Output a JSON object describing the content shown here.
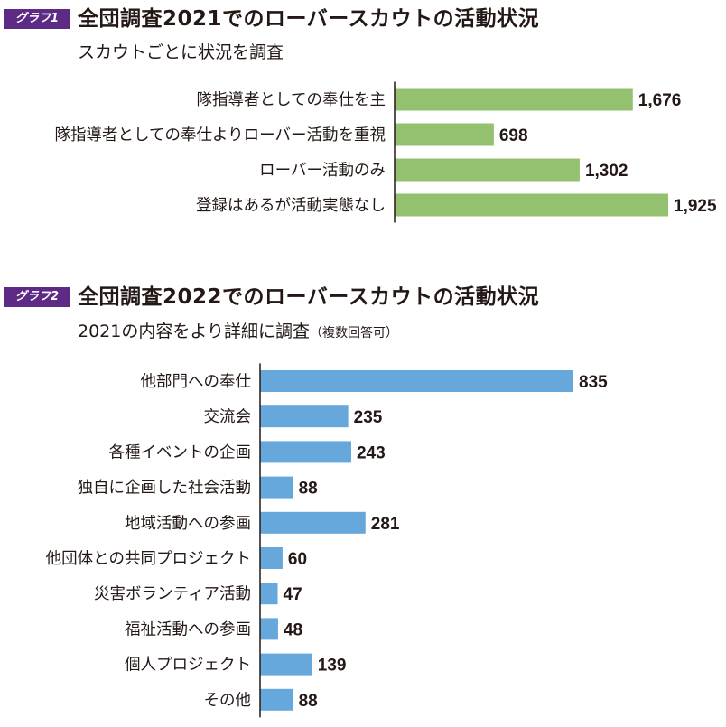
{
  "chart_data": [
    {
      "type": "bar",
      "orientation": "horizontal",
      "badge": "グラフ1",
      "title": "全団調査2021でのローバースカウトの活動状況",
      "subtitle": "スカウトごとに状況を調査",
      "subtitle_note": "",
      "color": "#93c170",
      "categories": [
        "隊指導者としての奉仕を主",
        "隊指導者としての奉仕よりローバー活動を重視",
        "ローバー活動のみ",
        "登録はあるが活動実態なし"
      ],
      "values": [
        1676,
        698,
        1302,
        1925
      ],
      "value_labels": [
        "1,676",
        "698",
        "1,302",
        "1,925"
      ],
      "xlim": [
        0,
        1925
      ],
      "grid": false
    },
    {
      "type": "bar",
      "orientation": "horizontal",
      "badge": "グラフ2",
      "title": "全団調査2022でのローバースカウトの活動状況",
      "subtitle": "2021の内容をより詳細に調査",
      "subtitle_note": "（複数回答可）",
      "color": "#66a8dc",
      "categories": [
        "他部門への奉仕",
        "交流会",
        "各種イベントの企画",
        "独自に企画した社会活動",
        "地域活動への参画",
        "他団体との共同プロジェクト",
        "災害ボランティア活動",
        "福祉活動への参画",
        "個人プロジェクト",
        "その他"
      ],
      "values": [
        835,
        235,
        243,
        88,
        281,
        60,
        47,
        48,
        139,
        88
      ],
      "value_labels": [
        "835",
        "235",
        "243",
        "88",
        "281",
        "60",
        "47",
        "48",
        "139",
        "88"
      ],
      "xlim": [
        0,
        835
      ],
      "grid": false
    }
  ]
}
